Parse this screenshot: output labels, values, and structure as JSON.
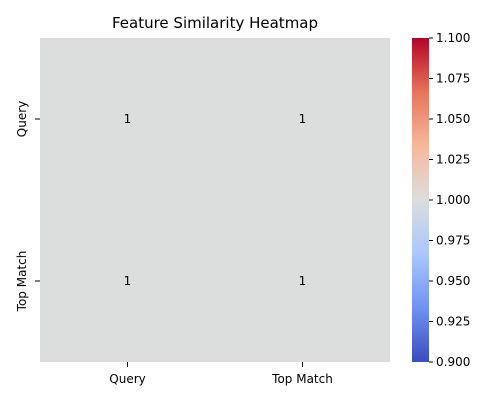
{
  "chart_data": {
    "type": "heatmap",
    "title": "Feature Similarity Heatmap",
    "x_categories": [
      "Query",
      "Top Match"
    ],
    "y_categories": [
      "Query",
      "Top Match"
    ],
    "values": [
      [
        1,
        1
      ],
      [
        1,
        1
      ]
    ],
    "annotations": [
      "1",
      "1",
      "1",
      "1"
    ],
    "colormap": "coolwarm",
    "cell_color": "#dcdddd",
    "colorbar": {
      "range": [
        0.9,
        1.1
      ],
      "ticks": [
        0.9,
        0.925,
        0.95,
        0.975,
        1.0,
        1.025,
        1.05,
        1.075,
        1.1
      ],
      "tick_labels": [
        "0.900",
        "0.925",
        "0.950",
        "0.975",
        "1.000",
        "1.025",
        "1.050",
        "1.075",
        "1.100"
      ],
      "stops": [
        "#3b4cc0",
        "#6f92f3",
        "#aac7fd",
        "#dcdddd",
        "#f7b89c",
        "#e7745b",
        "#b40426"
      ]
    }
  }
}
